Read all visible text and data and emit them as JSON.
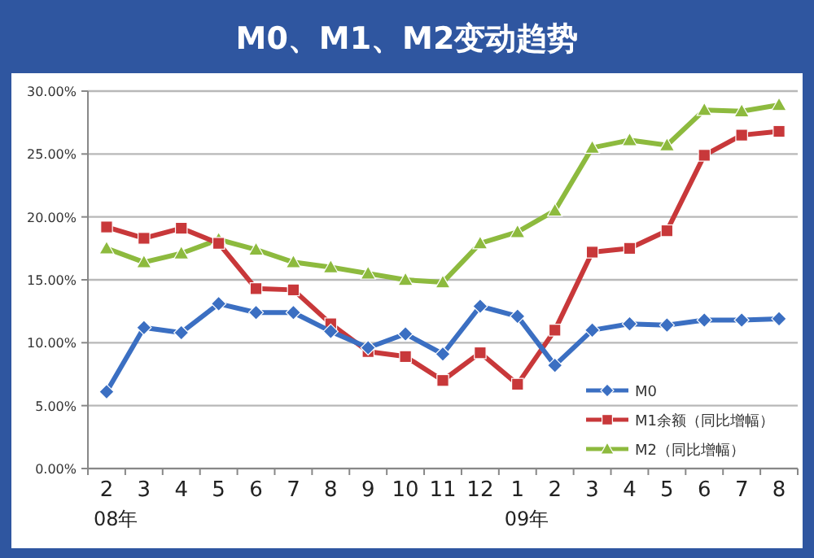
{
  "chart_data": {
    "type": "line",
    "title": "M0、M1、M2变动趋势",
    "categories": [
      "2",
      "3",
      "4",
      "5",
      "6",
      "7",
      "8",
      "9",
      "10",
      "11",
      "12",
      "1",
      "2",
      "3",
      "4",
      "5",
      "6",
      "7",
      "8"
    ],
    "series": [
      {
        "name": "M0",
        "color": "#3b6fc2",
        "marker": "diamond",
        "values": [
          6.1,
          11.2,
          10.8,
          13.1,
          12.4,
          12.4,
          10.9,
          9.6,
          10.7,
          9.1,
          12.9,
          12.1,
          8.2,
          11.0,
          11.5,
          11.4,
          11.8,
          11.8,
          11.9
        ]
      },
      {
        "name": "M1余额（同比增幅）",
        "color": "#c8383a",
        "marker": "square",
        "values": [
          19.2,
          18.3,
          19.1,
          17.9,
          14.3,
          14.2,
          11.5,
          9.3,
          8.9,
          7.0,
          9.2,
          6.7,
          11.0,
          17.2,
          17.5,
          18.9,
          24.9,
          26.5,
          26.8
        ]
      },
      {
        "name": "M2（同比增幅）",
        "color": "#8dba3e",
        "marker": "triangle",
        "values": [
          17.5,
          16.4,
          17.1,
          18.2,
          17.4,
          16.4,
          16.0,
          15.5,
          15.0,
          14.8,
          17.9,
          18.8,
          20.5,
          25.5,
          26.1,
          25.7,
          28.5,
          28.4,
          28.9
        ]
      }
    ],
    "ylim": [
      0,
      30
    ],
    "yticks": [
      {
        "value": 0,
        "label": "0.00%"
      },
      {
        "value": 5,
        "label": "5.00%"
      },
      {
        "value": 10,
        "label": "10.00%"
      },
      {
        "value": 15,
        "label": "15.00%"
      },
      {
        "value": 20,
        "label": "20.00%"
      },
      {
        "value": 25,
        "label": "25.00%"
      },
      {
        "value": 30,
        "label": "30.00%"
      }
    ],
    "annotations": [
      "08年",
      "09年"
    ],
    "grid": "y",
    "legend": "bottom right",
    "line_style": "solid"
  }
}
